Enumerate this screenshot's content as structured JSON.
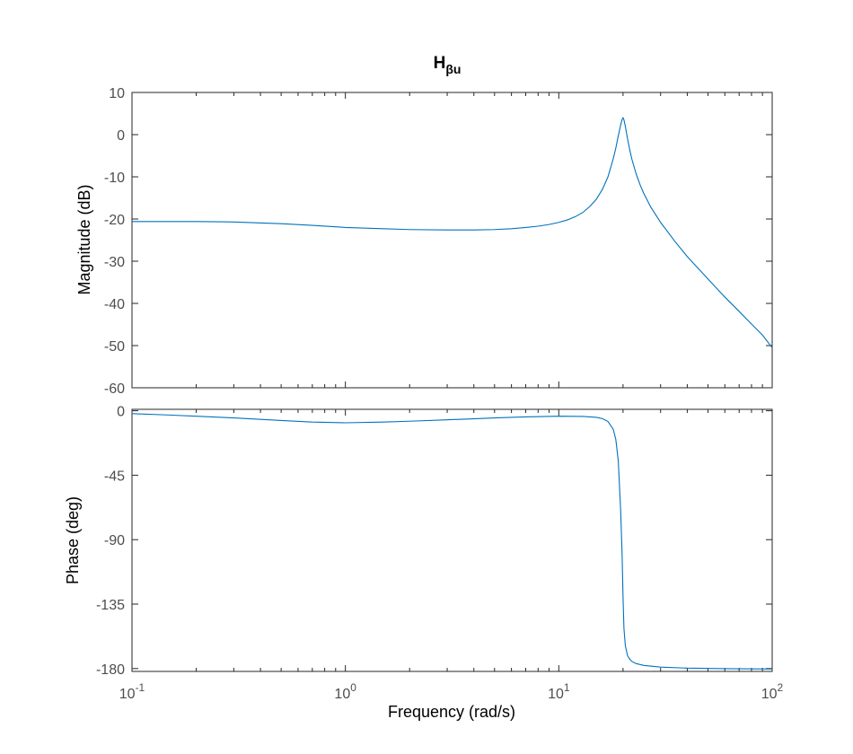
{
  "chart_data": {
    "type": "line",
    "title": "H",
    "title_subscript": "βu",
    "xlabel": "Frequency  (rad/s)",
    "x_scale": "log",
    "xlim": [
      0.1,
      100
    ],
    "x_ticks": [
      {
        "base": "10",
        "exp": "-1",
        "value": 0.1
      },
      {
        "base": "10",
        "exp": "0",
        "value": 1
      },
      {
        "base": "10",
        "exp": "1",
        "value": 10
      },
      {
        "base": "10",
        "exp": "2",
        "value": 100
      }
    ],
    "line_color": "#0072BD",
    "grid": false,
    "panels": [
      {
        "name": "magnitude",
        "ylabel": "Magnitude (dB)",
        "ylim": [
          -60,
          10
        ],
        "y_ticks": [
          10,
          0,
          -10,
          -20,
          -30,
          -40,
          -50,
          -60
        ],
        "series": [
          {
            "x": [
              0.1,
              0.15,
              0.2,
              0.3,
              0.5,
              0.7,
              1,
              1.5,
              2,
              3,
              4,
              5,
              6,
              7,
              8,
              9,
              10,
              11,
              12,
              13,
              14,
              15,
              16,
              17,
              18,
              18.5,
              19,
              19.5,
              19.8,
              20,
              20.2,
              20.5,
              21,
              21.5,
              22,
              23,
              24,
              25,
              27,
              30,
              35,
              40,
              50,
              60,
              70,
              80,
              90,
              100
            ],
            "y": [
              -20.6,
              -20.6,
              -20.6,
              -20.7,
              -21.1,
              -21.5,
              -22.0,
              -22.3,
              -22.5,
              -22.6,
              -22.6,
              -22.5,
              -22.3,
              -22.0,
              -21.7,
              -21.3,
              -20.8,
              -20.2,
              -19.4,
              -18.4,
              -17.0,
              -15.3,
              -13.0,
              -10.0,
              -5.7,
              -3.2,
              -0.3,
              2.3,
              3.6,
              4.0,
              3.5,
              2.0,
              -1.0,
              -3.6,
              -5.8,
              -9.2,
              -11.8,
              -13.9,
              -17.2,
              -20.8,
              -25.3,
              -28.9,
              -34.2,
              -38.5,
              -41.9,
              -44.9,
              -47.5,
              -50.5
            ]
          }
        ]
      },
      {
        "name": "phase",
        "ylabel": "Phase (deg)",
        "ylim": [
          -182,
          1
        ],
        "y_ticks": [
          0,
          -45,
          -90,
          -135,
          -180
        ],
        "series": [
          {
            "x": [
              0.1,
              0.15,
              0.2,
              0.3,
              0.5,
              0.7,
              1,
              1.5,
              2,
              3,
              4,
              5,
              7,
              10,
              13,
              15,
              16,
              17,
              18,
              18.5,
              19,
              19.5,
              19.8,
              20,
              20.2,
              20.5,
              21,
              21.5,
              22,
              23,
              25,
              30,
              40,
              60,
              100
            ],
            "y": [
              -2.0,
              -3.0,
              -3.8,
              -5.0,
              -6.8,
              -7.9,
              -8.4,
              -7.9,
              -7.3,
              -6.3,
              -5.6,
              -5.0,
              -4.3,
              -3.8,
              -4.0,
              -4.6,
              -5.5,
              -7.5,
              -13.0,
              -20.0,
              -35.0,
              -70.0,
              -100.0,
              -130.0,
              -152.0,
              -164.0,
              -171.0,
              -173.5,
              -175.0,
              -176.5,
              -177.8,
              -179.0,
              -179.7,
              -180.1,
              -180.3
            ]
          }
        ]
      }
    ]
  }
}
